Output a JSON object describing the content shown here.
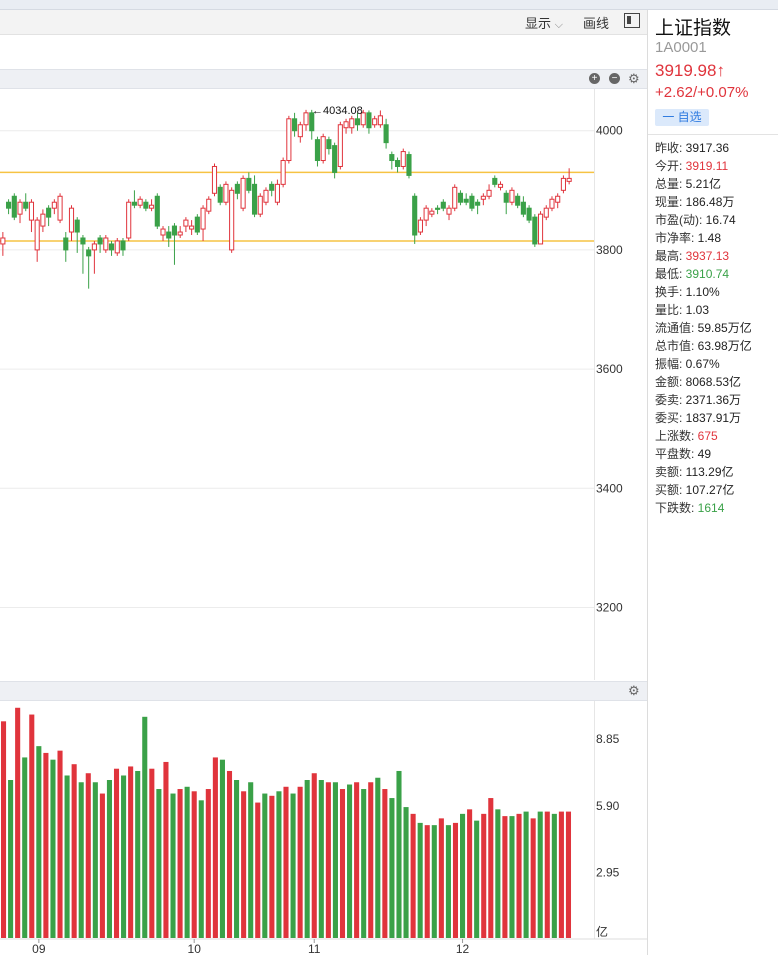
{
  "toolbar": {
    "display_label": "显示",
    "draw_label": "画线"
  },
  "stock": {
    "name": "上证指数",
    "code": "1A0001",
    "price": "3919.98↑",
    "change": "+2.62/+0.07%",
    "watch_label": "一 自选"
  },
  "stats": [
    {
      "label": "昨收:",
      "value": "3917.36",
      "color": "normal"
    },
    {
      "label": "今开:",
      "value": "3919.11",
      "color": "red"
    },
    {
      "label": "总量:",
      "value": "5.21亿",
      "color": "normal"
    },
    {
      "label": "现量:",
      "value": "186.48万",
      "color": "normal"
    },
    {
      "label": "市盈(动):",
      "value": "16.74",
      "color": "normal"
    },
    {
      "label": "市净率:",
      "value": "1.48",
      "color": "normal"
    },
    {
      "label": "最高:",
      "value": "3937.13",
      "color": "red"
    },
    {
      "label": "最低:",
      "value": "3910.74",
      "color": "green"
    },
    {
      "label": "换手:",
      "value": "1.10%",
      "color": "normal"
    },
    {
      "label": "量比:",
      "value": "1.03",
      "color": "normal"
    },
    {
      "label": "流通值:",
      "value": "59.85万亿",
      "color": "normal"
    },
    {
      "label": "总市值:",
      "value": "63.98万亿",
      "color": "normal"
    },
    {
      "label": "振幅:",
      "value": "0.67%",
      "color": "normal"
    },
    {
      "label": "金额:",
      "value": "8068.53亿",
      "color": "normal"
    },
    {
      "label": "委卖:",
      "value": "2371.36万",
      "color": "normal"
    },
    {
      "label": "委买:",
      "value": "1837.91万",
      "color": "normal"
    },
    {
      "label": "上涨数:",
      "value": "675",
      "color": "red"
    },
    {
      "label": "平盘数:",
      "value": "49",
      "color": "normal"
    },
    {
      "label": "卖额:",
      "value": "113.29亿",
      "color": "normal"
    },
    {
      "label": "买额:",
      "value": "107.27亿",
      "color": "normal"
    },
    {
      "label": "下跌数:",
      "value": "1614",
      "color": "green"
    }
  ],
  "colors": {
    "up": "#e0343c",
    "down": "#3aa148",
    "hline": "#f6c343"
  },
  "chart_data": [
    {
      "type": "candlestick",
      "y_ticks": [
        4000,
        3800,
        3600,
        3400,
        3200
      ],
      "ylim": [
        3080,
        4070
      ],
      "hlines": [
        3930,
        3815
      ],
      "annotation": "←4034.08",
      "candles": [
        [
          3810,
          3820,
          3790,
          3830
        ],
        [
          3880,
          3870,
          3860,
          3885
        ],
        [
          3890,
          3855,
          3850,
          3895
        ],
        [
          3860,
          3880,
          3845,
          3885
        ],
        [
          3880,
          3870,
          3865,
          3895
        ],
        [
          3850,
          3880,
          3830,
          3885
        ],
        [
          3800,
          3850,
          3780,
          3855
        ],
        [
          3840,
          3860,
          3830,
          3868
        ],
        [
          3870,
          3855,
          3840,
          3875
        ],
        [
          3870,
          3880,
          3860,
          3885
        ],
        [
          3850,
          3890,
          3845,
          3895
        ],
        [
          3820,
          3800,
          3780,
          3830
        ],
        [
          3830,
          3870,
          3815,
          3875
        ],
        [
          3850,
          3830,
          3795,
          3855
        ],
        [
          3820,
          3810,
          3760,
          3825
        ],
        [
          3800,
          3790,
          3735,
          3805
        ],
        [
          3800,
          3810,
          3760,
          3815
        ],
        [
          3820,
          3810,
          3795,
          3825
        ],
        [
          3800,
          3820,
          3795,
          3825
        ],
        [
          3810,
          3800,
          3790,
          3815
        ],
        [
          3795,
          3815,
          3790,
          3820
        ],
        [
          3815,
          3800,
          3790,
          3820
        ],
        [
          3820,
          3880,
          3815,
          3885
        ],
        [
          3880,
          3875,
          3870,
          3900
        ],
        [
          3875,
          3885,
          3870,
          3890
        ],
        [
          3880,
          3870,
          3865,
          3885
        ],
        [
          3870,
          3875,
          3865,
          3885
        ],
        [
          3890,
          3840,
          3835,
          3895
        ],
        [
          3825,
          3835,
          3815,
          3840
        ],
        [
          3830,
          3820,
          3805,
          3840
        ],
        [
          3840,
          3825,
          3775,
          3845
        ],
        [
          3825,
          3830,
          3820,
          3840
        ],
        [
          3840,
          3850,
          3830,
          3855
        ],
        [
          3835,
          3840,
          3825,
          3850
        ],
        [
          3855,
          3830,
          3825,
          3860
        ],
        [
          3835,
          3870,
          3815,
          3875
        ],
        [
          3865,
          3885,
          3860,
          3890
        ],
        [
          3895,
          3940,
          3890,
          3945
        ],
        [
          3905,
          3880,
          3875,
          3910
        ],
        [
          3880,
          3910,
          3875,
          3915
        ],
        [
          3800,
          3900,
          3795,
          3905
        ],
        [
          3910,
          3895,
          3885,
          3915
        ],
        [
          3870,
          3920,
          3865,
          3925
        ],
        [
          3920,
          3900,
          3895,
          3930
        ],
        [
          3910,
          3860,
          3855,
          3925
        ],
        [
          3860,
          3890,
          3855,
          3895
        ],
        [
          3880,
          3900,
          3875,
          3905
        ],
        [
          3910,
          3900,
          3890,
          3915
        ],
        [
          3880,
          3910,
          3875,
          3918
        ],
        [
          3910,
          3950,
          3905,
          3955
        ],
        [
          3950,
          4020,
          3945,
          4025
        ],
        [
          4020,
          4000,
          3990,
          4030
        ],
        [
          3990,
          4010,
          3980,
          4015
        ],
        [
          4010,
          4030,
          4000,
          4035
        ],
        [
          4030,
          4000,
          3985,
          4035
        ],
        [
          3985,
          3950,
          3940,
          3990
        ],
        [
          3950,
          3990,
          3945,
          3995
        ],
        [
          3985,
          3970,
          3960,
          3990
        ],
        [
          3975,
          3930,
          3920,
          3980
        ],
        [
          3940,
          4010,
          3935,
          4015
        ],
        [
          4005,
          4015,
          3995,
          4020
        ],
        [
          4005,
          4020,
          3995,
          4025
        ],
        [
          4020,
          4010,
          4000,
          4030
        ],
        [
          4010,
          4030,
          4005,
          4035
        ],
        [
          4030,
          4005,
          3995,
          4034
        ],
        [
          4010,
          4020,
          4005,
          4025
        ],
        [
          4010,
          4025,
          4005,
          4034
        ],
        [
          4010,
          3980,
          3970,
          4020
        ],
        [
          3960,
          3950,
          3935,
          3965
        ],
        [
          3950,
          3940,
          3930,
          3955
        ],
        [
          3940,
          3965,
          3935,
          3970
        ],
        [
          3960,
          3925,
          3920,
          3965
        ],
        [
          3890,
          3825,
          3810,
          3895
        ],
        [
          3830,
          3850,
          3825,
          3855
        ],
        [
          3850,
          3870,
          3840,
          3875
        ],
        [
          3860,
          3865,
          3855,
          3870
        ],
        [
          3870,
          3868,
          3860,
          3875
        ],
        [
          3880,
          3870,
          3865,
          3885
        ],
        [
          3860,
          3870,
          3850,
          3875
        ],
        [
          3870,
          3905,
          3865,
          3910
        ],
        [
          3895,
          3880,
          3875,
          3900
        ],
        [
          3885,
          3880,
          3875,
          3895
        ],
        [
          3890,
          3870,
          3865,
          3895
        ],
        [
          3880,
          3875,
          3860,
          3885
        ],
        [
          3885,
          3890,
          3875,
          3895
        ],
        [
          3890,
          3900,
          3885,
          3910
        ],
        [
          3920,
          3910,
          3905,
          3925
        ],
        [
          3905,
          3910,
          3900,
          3915
        ],
        [
          3895,
          3880,
          3860,
          3900
        ],
        [
          3880,
          3900,
          3875,
          3905
        ],
        [
          3890,
          3875,
          3870,
          3895
        ],
        [
          3880,
          3860,
          3855,
          3890
        ],
        [
          3870,
          3850,
          3845,
          3875
        ],
        [
          3855,
          3810,
          3805,
          3860
        ],
        [
          3810,
          3860,
          3810,
          3865
        ],
        [
          3855,
          3870,
          3850,
          3875
        ],
        [
          3870,
          3885,
          3865,
          3890
        ],
        [
          3880,
          3890,
          3870,
          3895
        ],
        [
          3900,
          3920,
          3895,
          3925
        ],
        [
          3915,
          3920,
          3910,
          3937
        ]
      ]
    },
    {
      "type": "bar",
      "y_ticks": [
        "8.85",
        "5.90",
        "2.95"
      ],
      "unit": "亿",
      "ylim": [
        0,
        10.5
      ],
      "x_ticks": [
        {
          "label": "09",
          "index": 5
        },
        {
          "label": "10",
          "index": 27
        },
        {
          "label": "11",
          "index": 44
        },
        {
          "label": "12",
          "index": 65
        }
      ],
      "values": [
        9.6,
        7.0,
        10.2,
        8.0,
        9.9,
        8.5,
        8.2,
        7.9,
        8.3,
        7.2,
        7.7,
        6.9,
        7.3,
        6.9,
        6.4,
        7.0,
        7.5,
        7.2,
        7.6,
        7.4,
        9.8,
        7.5,
        6.6,
        7.8,
        6.4,
        6.6,
        6.7,
        6.5,
        6.1,
        6.6,
        8.0,
        7.9,
        7.4,
        7.0,
        6.5,
        6.9,
        6.0,
        6.4,
        6.3,
        6.5,
        6.7,
        6.4,
        6.7,
        7.0,
        7.3,
        7.0,
        6.9,
        6.9,
        6.6,
        6.8,
        6.9,
        6.6,
        6.9,
        7.1,
        6.6,
        6.2,
        7.4,
        5.8,
        5.5,
        5.1,
        5.0,
        5.0,
        5.3,
        5.0,
        5.1,
        5.5,
        5.7,
        5.2,
        5.5,
        6.2,
        5.7,
        5.4,
        5.4,
        5.5,
        5.6,
        5.3,
        5.6,
        5.6,
        5.5,
        5.6,
        5.6
      ],
      "up": [
        true,
        false,
        true,
        false,
        true,
        false,
        true,
        false,
        true,
        false,
        true,
        false,
        true,
        false,
        true,
        false,
        true,
        false,
        true,
        false,
        false,
        true,
        false,
        true,
        false,
        true,
        false,
        true,
        false,
        true,
        true,
        false,
        true,
        false,
        true,
        false,
        true,
        false,
        true,
        false,
        true,
        false,
        true,
        false,
        true,
        false,
        true,
        false,
        true,
        false,
        true,
        false,
        true,
        false,
        true,
        false,
        false,
        false,
        true,
        false,
        true,
        false,
        true,
        false,
        true,
        false,
        true,
        false,
        true,
        true,
        false,
        true,
        false,
        true,
        false,
        true,
        false,
        true,
        false,
        true,
        true
      ]
    }
  ]
}
